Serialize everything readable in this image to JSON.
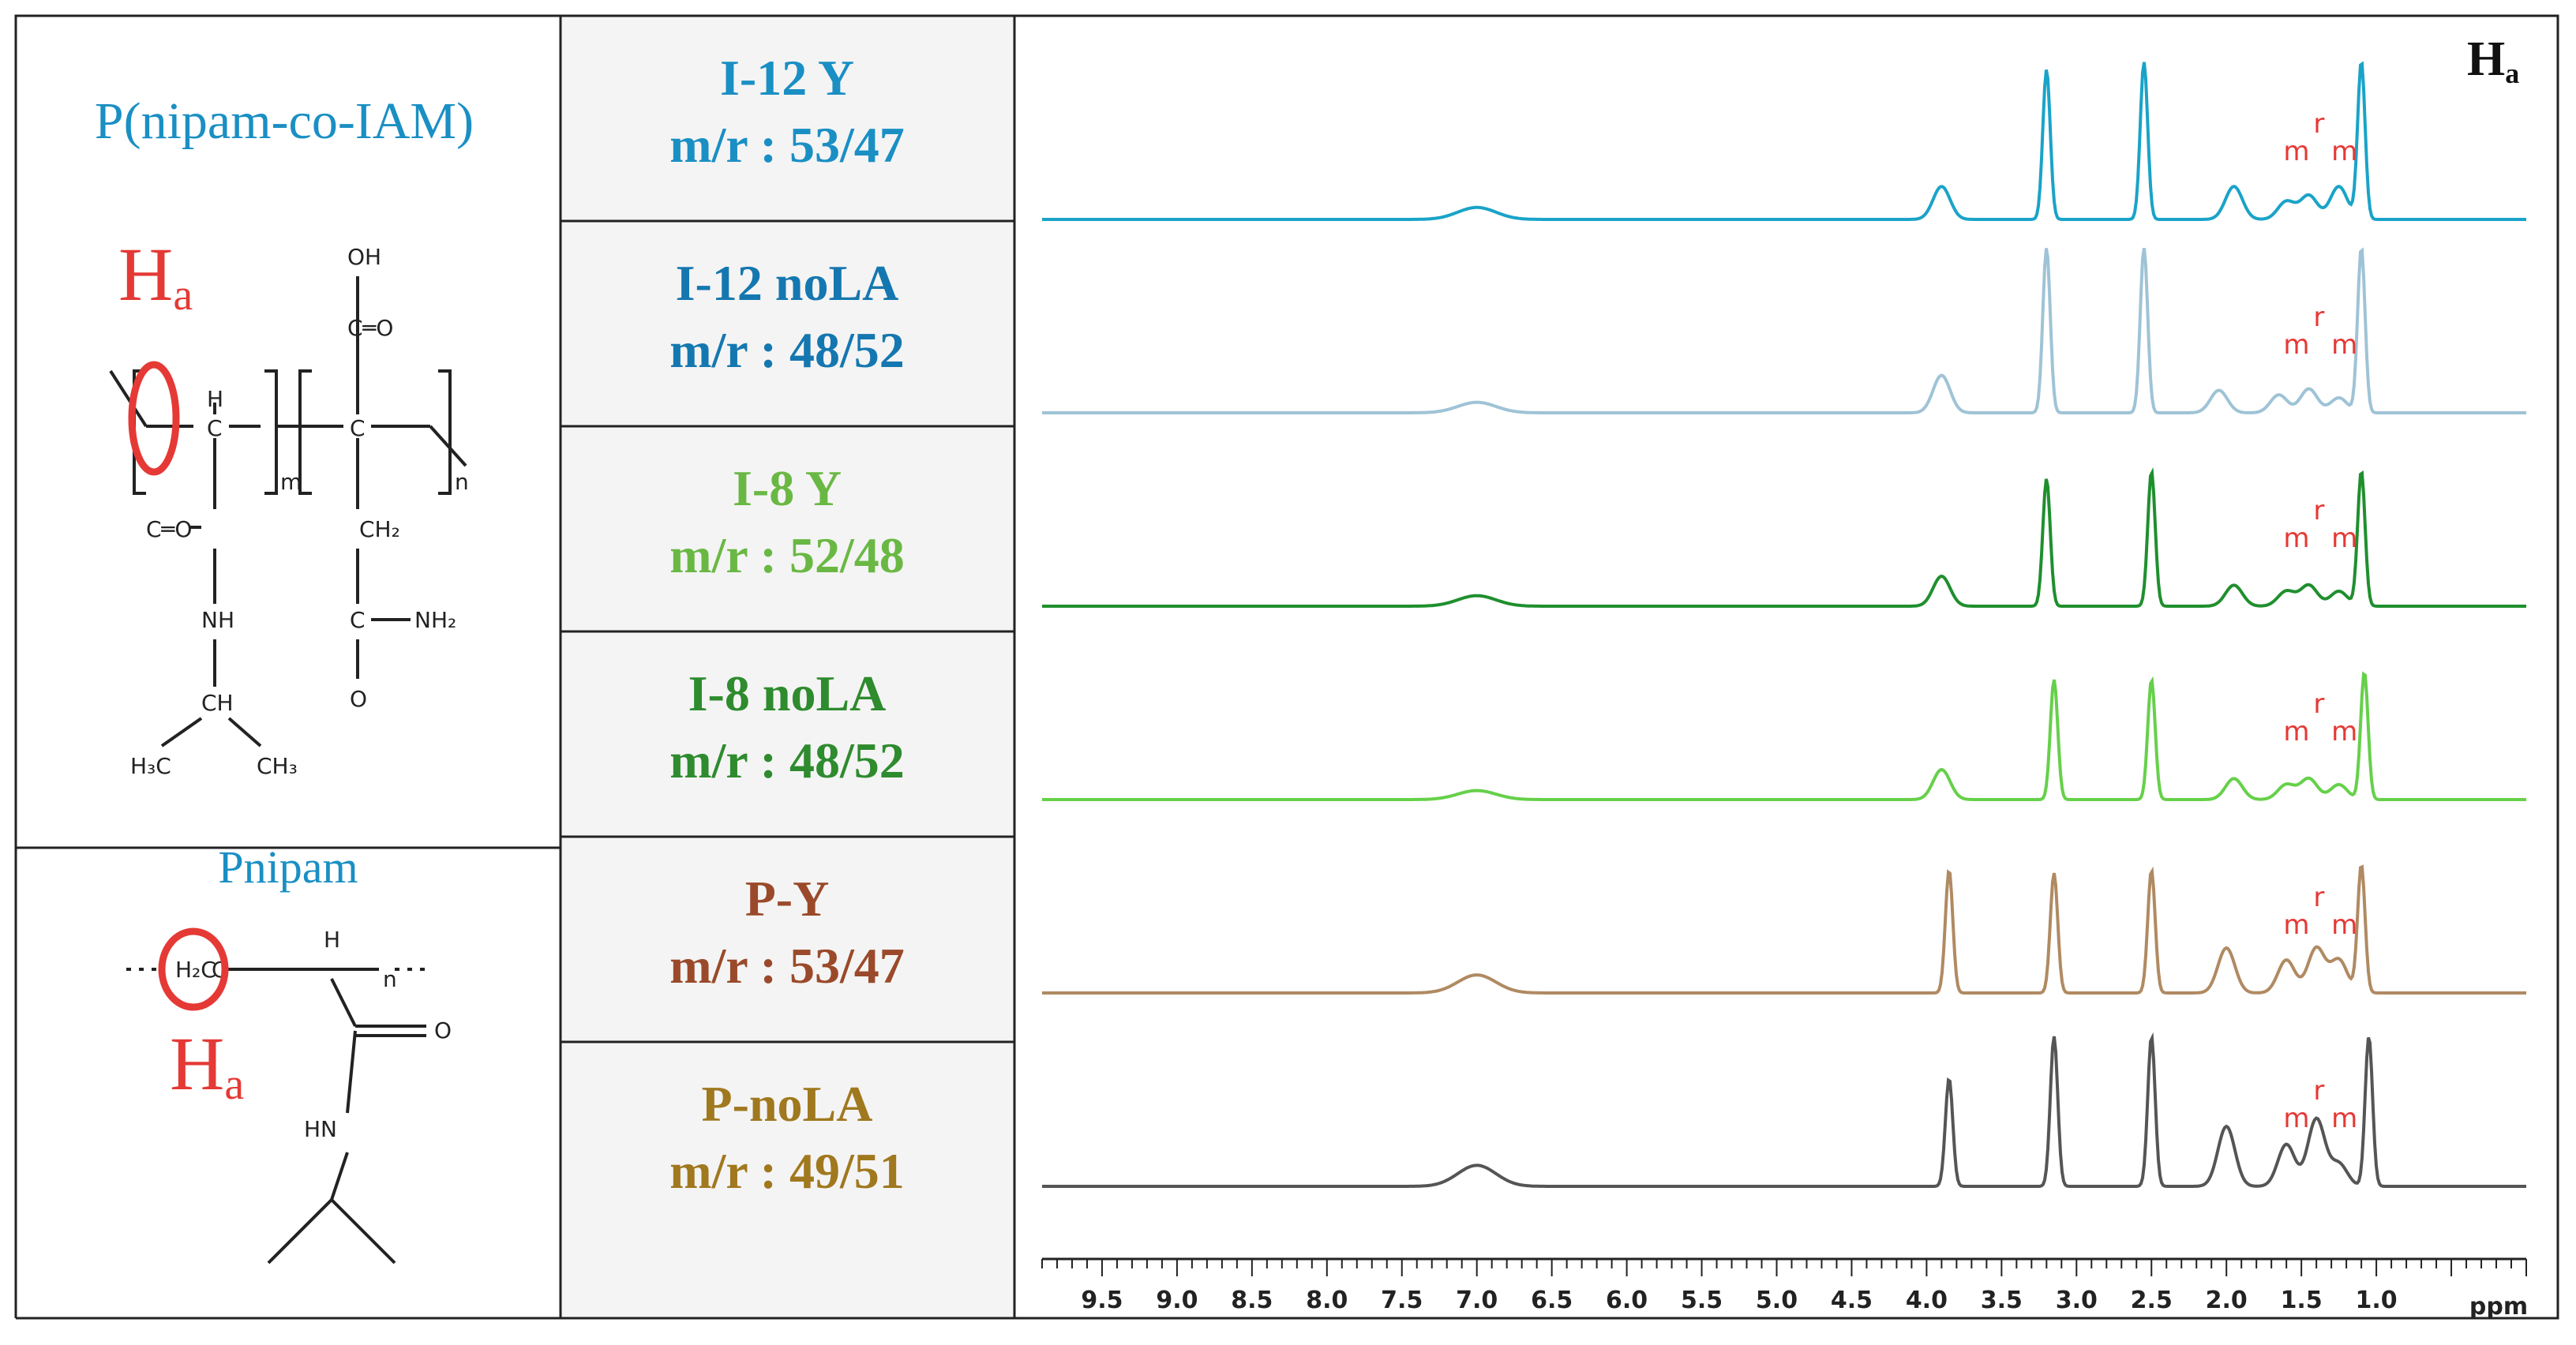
{
  "structures": {
    "copolymer_title": "P(nipam-co-IAM)",
    "homopolymer_title": "Pnipam",
    "ha_label": "H",
    "ha_sub": "a",
    "atoms": {
      "oh": "OH",
      "co": "C═O",
      "h": "H",
      "c": "C",
      "m": "m",
      "n": "n",
      "ch2": "CH₂",
      "nh": "NH",
      "ch": "CH",
      "nh2": "NH₂",
      "o": "O",
      "h3c": "H₃C",
      "ch3": "CH₃",
      "h2c": "H₂C",
      "hn": "HN"
    }
  },
  "samples": [
    {
      "name": "I-12 Y",
      "ratio": "m/r : 53/47",
      "color": "#1a8fc4"
    },
    {
      "name": "I-12 noLA",
      "ratio": "m/r : 48/52",
      "color": "#1577b0"
    },
    {
      "name": "I-8 Y",
      "ratio": "m/r : 52/48",
      "color": "#6ab844"
    },
    {
      "name": "I-8 noLA",
      "ratio": "m/r : 48/52",
      "color": "#2e8b2e"
    },
    {
      "name": "P-Y",
      "ratio": "m/r : 53/47",
      "color": "#9a4a2a"
    },
    {
      "name": "P-noLA",
      "ratio": "m/r : 49/51",
      "color": "#a0781e"
    }
  ],
  "chart_data": {
    "type": "line",
    "title": "",
    "corner_label": "H",
    "corner_label_sub": "a",
    "xlabel": "ppm",
    "x_reversed": true,
    "xlim": [
      9.9,
      0.0
    ],
    "ticks": [
      "9.5",
      "9.0",
      "8.5",
      "8.0",
      "7.5",
      "7.0",
      "6.5",
      "6.0",
      "5.5",
      "5.0",
      "4.5",
      "4.0",
      "3.5",
      "3.0",
      "2.5",
      "2.0",
      "1.5",
      "1.0"
    ],
    "tacticity_labels": {
      "m": "m",
      "r": "r"
    },
    "series": [
      {
        "color": "#1aa3c8",
        "baseline": 0.12,
        "broad_7": 0.08,
        "peaks": [
          {
            "x": 3.9,
            "h": 0.22
          },
          {
            "x": 3.2,
            "h": 1.0
          },
          {
            "x": 2.55,
            "h": 1.05
          },
          {
            "x": 1.95,
            "h": 0.22
          },
          {
            "x": 1.6,
            "h": 0.12
          },
          {
            "x": 1.45,
            "h": 0.16
          },
          {
            "x": 1.25,
            "h": 0.22
          },
          {
            "x": 1.1,
            "h": 1.05
          }
        ]
      },
      {
        "color": "#9fc3d6",
        "baseline": 0.12,
        "broad_7": 0.07,
        "peaks": [
          {
            "x": 3.9,
            "h": 0.25
          },
          {
            "x": 3.2,
            "h": 1.1
          },
          {
            "x": 2.55,
            "h": 1.1
          },
          {
            "x": 2.05,
            "h": 0.15
          },
          {
            "x": 1.65,
            "h": 0.12
          },
          {
            "x": 1.45,
            "h": 0.16
          },
          {
            "x": 1.25,
            "h": 0.1
          },
          {
            "x": 1.1,
            "h": 1.1
          }
        ]
      },
      {
        "color": "#1f8f2e",
        "baseline": 0.12,
        "broad_7": 0.07,
        "peaks": [
          {
            "x": 3.9,
            "h": 0.2
          },
          {
            "x": 3.2,
            "h": 0.85
          },
          {
            "x": 2.5,
            "h": 0.9
          },
          {
            "x": 1.95,
            "h": 0.14
          },
          {
            "x": 1.6,
            "h": 0.1
          },
          {
            "x": 1.45,
            "h": 0.14
          },
          {
            "x": 1.25,
            "h": 0.1
          },
          {
            "x": 1.1,
            "h": 0.9
          }
        ]
      },
      {
        "color": "#66d04a",
        "baseline": 0.12,
        "broad_7": 0.06,
        "peaks": [
          {
            "x": 3.9,
            "h": 0.2
          },
          {
            "x": 3.15,
            "h": 0.8
          },
          {
            "x": 2.5,
            "h": 0.8
          },
          {
            "x": 1.95,
            "h": 0.14
          },
          {
            "x": 1.6,
            "h": 0.1
          },
          {
            "x": 1.45,
            "h": 0.14
          },
          {
            "x": 1.25,
            "h": 0.1
          },
          {
            "x": 1.08,
            "h": 0.85
          }
        ]
      },
      {
        "color": "#b08a62",
        "baseline": 0.12,
        "broad_7": 0.12,
        "peaks": [
          {
            "x": 3.85,
            "h": 0.82
          },
          {
            "x": 3.15,
            "h": 0.8
          },
          {
            "x": 2.5,
            "h": 0.82
          },
          {
            "x": 2.0,
            "h": 0.3
          },
          {
            "x": 1.6,
            "h": 0.22
          },
          {
            "x": 1.4,
            "h": 0.3
          },
          {
            "x": 1.25,
            "h": 0.22
          },
          {
            "x": 1.1,
            "h": 0.85
          }
        ]
      },
      {
        "color": "#555555",
        "baseline": 0.12,
        "broad_7": 0.14,
        "peaks": [
          {
            "x": 3.85,
            "h": 0.72
          },
          {
            "x": 3.15,
            "h": 1.0
          },
          {
            "x": 2.5,
            "h": 1.0
          },
          {
            "x": 2.0,
            "h": 0.4
          },
          {
            "x": 1.6,
            "h": 0.28
          },
          {
            "x": 1.4,
            "h": 0.45
          },
          {
            "x": 1.25,
            "h": 0.15
          },
          {
            "x": 1.05,
            "h": 1.0
          }
        ]
      }
    ]
  }
}
